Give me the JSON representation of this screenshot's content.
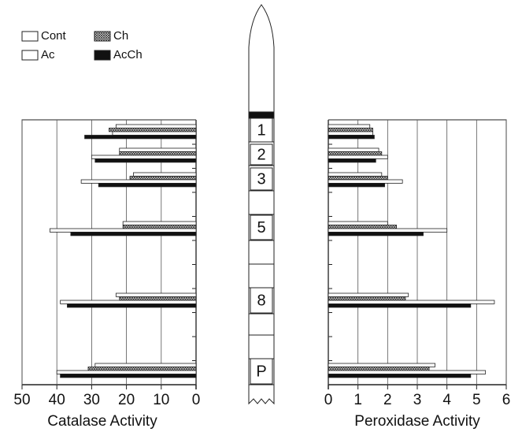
{
  "chart_data": [
    {
      "type": "bar",
      "orientation": "horizontal",
      "xlabel": "Catalase Activity",
      "categories": [
        "1",
        "2",
        "3",
        "5",
        "8",
        "P"
      ],
      "series": [
        {
          "name": "Cont",
          "color": "#ffffff",
          "values": [
            23,
            22,
            18,
            21,
            23,
            29
          ]
        },
        {
          "name": "Ch",
          "color": "#ffffff",
          "hatch": true,
          "values": [
            25,
            22,
            19,
            21,
            22,
            31
          ]
        },
        {
          "name": "Ac",
          "color": "#ffffff",
          "values": [
            24,
            30,
            33,
            42,
            39,
            40
          ]
        },
        {
          "name": "AcCh",
          "color": "#111111",
          "values": [
            32,
            29,
            28,
            36,
            37,
            39
          ]
        }
      ],
      "xlim": [
        50,
        0
      ],
      "xticks": [
        50,
        40,
        30,
        20,
        10,
        0
      ],
      "grid": true
    },
    {
      "type": "bar",
      "orientation": "horizontal",
      "xlabel": "Peroxidase Activity",
      "categories": [
        "1",
        "2",
        "3",
        "5",
        "8",
        "P"
      ],
      "series": [
        {
          "name": "Cont",
          "color": "#ffffff",
          "values": [
            1.4,
            1.7,
            1.8,
            2.0,
            2.7,
            3.6
          ]
        },
        {
          "name": "Ch",
          "color": "#ffffff",
          "hatch": true,
          "values": [
            1.5,
            1.8,
            2.0,
            2.3,
            2.6,
            3.4
          ]
        },
        {
          "name": "Ac",
          "color": "#ffffff",
          "values": [
            1.5,
            2.0,
            2.5,
            4.0,
            5.6,
            5.3
          ]
        },
        {
          "name": "AcCh",
          "color": "#111111",
          "values": [
            1.55,
            1.6,
            1.9,
            3.2,
            4.8,
            4.8
          ]
        }
      ],
      "xlim": [
        0,
        6
      ],
      "xticks": [
        0,
        1,
        2,
        3,
        4,
        5,
        6
      ],
      "grid": true
    }
  ]
}
